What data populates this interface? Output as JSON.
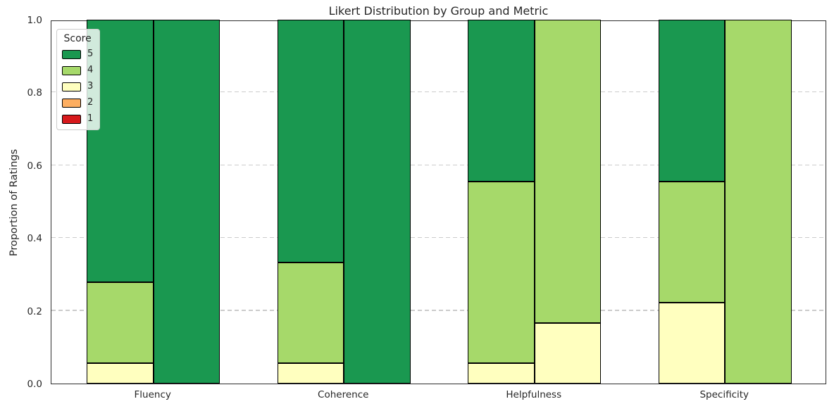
{
  "chart_data": {
    "type": "bar",
    "subtype": "stacked-grouped",
    "title": "Likert Distribution by Group and Metric",
    "xlabel": "",
    "ylabel": "Proportion of Ratings",
    "ylim": [
      0,
      1
    ],
    "categories": [
      "Fluency",
      "Coherence",
      "Helpfulness",
      "Specificity"
    ],
    "bars_per_category": 2,
    "yticks": [
      {
        "value": 0.0,
        "label": "0.0"
      },
      {
        "value": 0.2,
        "label": "0.2"
      },
      {
        "value": 0.4,
        "label": "0.4"
      },
      {
        "value": 0.6,
        "label": "0.6"
      },
      {
        "value": 0.8,
        "label": "0.8"
      },
      {
        "value": 1.0,
        "label": "1.0"
      }
    ],
    "grid": {
      "orientation": "horizontal",
      "style": "dashed",
      "color": "#cbcbcb",
      "values": [
        0.2,
        0.4,
        0.6,
        0.8
      ]
    },
    "legend": {
      "title": "Score",
      "position": "upper left",
      "entries": [
        {
          "label": "5",
          "color": "#1a9850"
        },
        {
          "label": "4",
          "color": "#a6d96a"
        },
        {
          "label": "3",
          "color": "#ffffbf"
        },
        {
          "label": "2",
          "color": "#fdae61"
        },
        {
          "label": "1",
          "color": "#d7191c"
        }
      ]
    },
    "series": [
      {
        "category": "Fluency",
        "bar": 1,
        "segments": [
          {
            "score": "3",
            "value": 0.0556
          },
          {
            "score": "4",
            "value": 0.2222
          },
          {
            "score": "5",
            "value": 0.7222
          }
        ]
      },
      {
        "category": "Fluency",
        "bar": 2,
        "segments": [
          {
            "score": "5",
            "value": 1.0
          }
        ]
      },
      {
        "category": "Coherence",
        "bar": 1,
        "segments": [
          {
            "score": "3",
            "value": 0.0556
          },
          {
            "score": "4",
            "value": 0.2778
          },
          {
            "score": "5",
            "value": 0.6667
          }
        ]
      },
      {
        "category": "Coherence",
        "bar": 2,
        "segments": [
          {
            "score": "5",
            "value": 1.0
          }
        ]
      },
      {
        "category": "Helpfulness",
        "bar": 1,
        "segments": [
          {
            "score": "3",
            "value": 0.0556
          },
          {
            "score": "4",
            "value": 0.5
          },
          {
            "score": "5",
            "value": 0.4444
          }
        ]
      },
      {
        "category": "Helpfulness",
        "bar": 2,
        "segments": [
          {
            "score": "3",
            "value": 0.1667
          },
          {
            "score": "4",
            "value": 0.8333
          }
        ]
      },
      {
        "category": "Specificity",
        "bar": 1,
        "segments": [
          {
            "score": "3",
            "value": 0.2222
          },
          {
            "score": "4",
            "value": 0.3333
          },
          {
            "score": "5",
            "value": 0.4444
          }
        ]
      },
      {
        "category": "Specificity",
        "bar": 2,
        "segments": [
          {
            "score": "4",
            "value": 1.0
          }
        ]
      }
    ]
  }
}
